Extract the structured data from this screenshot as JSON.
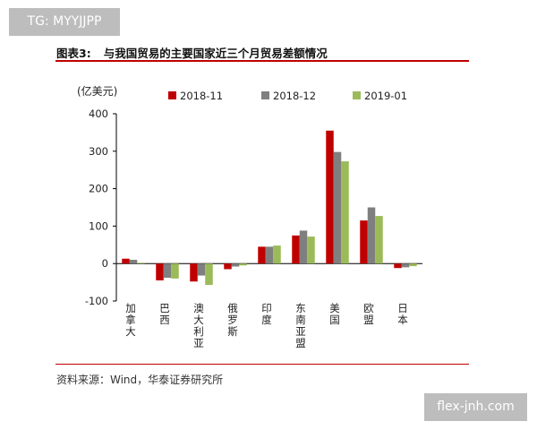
{
  "watermark_top": "TG: MYYJJPP",
  "watermark_bottom": "flex-jnh.com",
  "header": {
    "number": "图表3:",
    "text": "与我国贸易的主要国家近三个月贸易差额情况"
  },
  "source": "资料来源：Wind，华泰证券研究所",
  "chart_data": {
    "type": "bar",
    "title": "",
    "ylabel": "(亿美元)",
    "xlabel": "",
    "ylim": [
      -100,
      400
    ],
    "yticks": [
      -100,
      0,
      100,
      200,
      300,
      400
    ],
    "grid": false,
    "legend_position": "top",
    "categories": [
      "加拿大",
      "巴西",
      "澳大利亚",
      "俄罗斯",
      "印度",
      "东南亚盟",
      "美国",
      "欧盟",
      "日本"
    ],
    "series": [
      {
        "name": "2018-11",
        "color": "#c00000",
        "values": [
          13,
          -45,
          -48,
          -15,
          45,
          75,
          355,
          115,
          -12
        ]
      },
      {
        "name": "2018-12",
        "color": "#7f7f7f",
        "values": [
          10,
          -38,
          -32,
          -8,
          45,
          88,
          298,
          150,
          -10
        ]
      },
      {
        "name": "2019-01",
        "color": "#9bbb59",
        "values": [
          2,
          -40,
          -57,
          -5,
          48,
          72,
          273,
          127,
          -7
        ]
      }
    ]
  }
}
